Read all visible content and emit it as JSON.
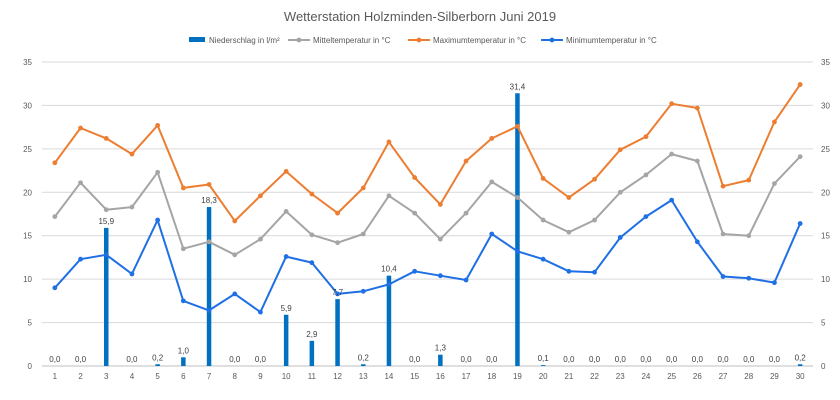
{
  "chart_data": {
    "type": "bar+line",
    "title": "Wetterstation Holzminden-Silberborn  Juni 2019",
    "categories": [
      "1",
      "2",
      "3",
      "4",
      "5",
      "6",
      "7",
      "8",
      "9",
      "10",
      "11",
      "12",
      "13",
      "14",
      "15",
      "16",
      "17",
      "18",
      "19",
      "20",
      "21",
      "22",
      "23",
      "24",
      "25",
      "26",
      "27",
      "28",
      "29",
      "30"
    ],
    "ylim": [
      0,
      35
    ],
    "yticks": [
      0,
      5,
      10,
      15,
      20,
      25,
      30,
      35
    ],
    "y2ticks": [
      0,
      5,
      10,
      15,
      20,
      25,
      30,
      35
    ],
    "legend_position": "top-center",
    "colors": {
      "niederschlag": "#0070c0",
      "mittel": "#a5a5a5",
      "maximum": "#ed7d31",
      "minimum": "#1f6fe5",
      "grid": "#d9d9d9",
      "axis": "#bfbfbf"
    },
    "bar_series": {
      "name": "Niederschlag in l/m²",
      "values": [
        0.0,
        0.0,
        15.9,
        0.0,
        0.2,
        1.0,
        18.3,
        0.0,
        0.0,
        5.9,
        2.9,
        7.7,
        0.2,
        10.4,
        0.0,
        1.3,
        0.0,
        0.0,
        31.4,
        0.1,
        0.0,
        0.0,
        0.0,
        0.0,
        0.0,
        0.0,
        0.0,
        0.0,
        0.0,
        0.2
      ],
      "labels": [
        "0,0",
        "0,0",
        "15,9",
        "0,0",
        "0,2",
        "1,0",
        "18,3",
        "0,0",
        "0,0",
        "5,9",
        "2,9",
        "7,7",
        "0,2",
        "10,4",
        "0,0",
        "1,3",
        "0,0",
        "0,0",
        "31,4",
        "0,1",
        "0,0",
        "0,0",
        "0,0",
        "0,0",
        "0,0",
        "0,0",
        "0,0",
        "0,0",
        "0,0",
        "0,2"
      ]
    },
    "line_series": [
      {
        "name": "Mitteltemperatur in °C",
        "color_key": "mittel",
        "values": [
          17.2,
          21.1,
          18.0,
          18.3,
          22.3,
          13.5,
          14.3,
          12.8,
          14.6,
          17.8,
          15.1,
          14.2,
          15.2,
          19.6,
          17.6,
          14.6,
          17.6,
          21.2,
          19.4,
          16.8,
          15.4,
          16.8,
          20.0,
          22.0,
          24.4,
          23.6,
          15.2,
          15.0,
          21.0,
          24.1
        ]
      },
      {
        "name": "Maximumtemperatur in °C",
        "color_key": "maximum",
        "values": [
          23.4,
          27.4,
          26.2,
          24.4,
          27.7,
          20.5,
          20.9,
          16.7,
          19.6,
          22.4,
          19.8,
          17.6,
          20.5,
          25.8,
          21.7,
          18.6,
          23.6,
          26.2,
          27.6,
          21.6,
          19.4,
          21.5,
          24.9,
          26.4,
          30.2,
          29.7,
          20.7,
          21.4,
          28.1,
          32.4
        ]
      },
      {
        "name": "Minimumtemperatur in °C",
        "color_key": "minimum",
        "values": [
          9.0,
          12.3,
          12.8,
          10.6,
          16.8,
          7.5,
          6.4,
          8.3,
          6.2,
          12.6,
          11.9,
          8.3,
          8.6,
          9.4,
          10.9,
          10.4,
          9.9,
          15.2,
          13.2,
          12.3,
          10.9,
          10.8,
          14.8,
          17.2,
          19.1,
          14.3,
          10.3,
          10.1,
          9.6,
          16.4
        ]
      }
    ]
  }
}
